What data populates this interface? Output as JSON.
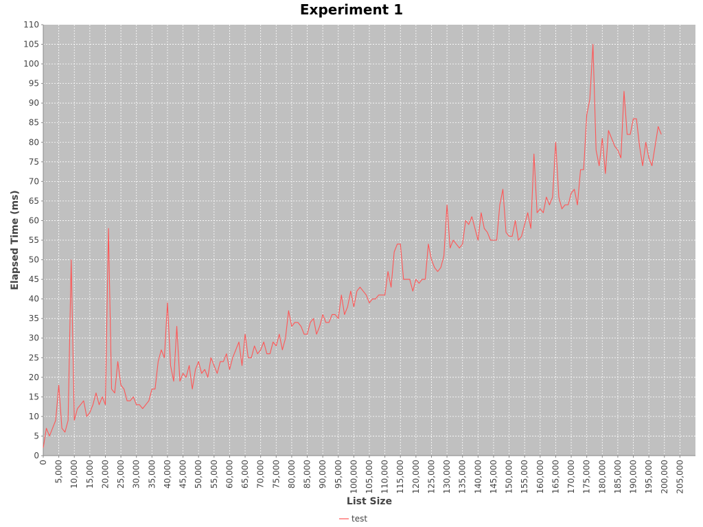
{
  "colors": {
    "plot_background": "#c0c0c0",
    "gridline": "#ffffff",
    "series": "#ff5555",
    "axis": "#888888",
    "text": "#444444",
    "title": "#000000"
  },
  "chart_data": {
    "type": "line",
    "title": "Experiment 1",
    "xlabel": "List Size",
    "ylabel": "Elapsed Time (ms)",
    "xlim": [
      0,
      210000
    ],
    "ylim": [
      0,
      110
    ],
    "x_ticks": [
      0,
      5000,
      10000,
      15000,
      20000,
      25000,
      30000,
      35000,
      40000,
      45000,
      50000,
      55000,
      60000,
      65000,
      70000,
      75000,
      80000,
      85000,
      90000,
      95000,
      100000,
      105000,
      110000,
      115000,
      120000,
      125000,
      130000,
      135000,
      140000,
      145000,
      150000,
      155000,
      160000,
      165000,
      170000,
      175000,
      180000,
      185000,
      190000,
      195000,
      200000,
      205000
    ],
    "x_tick_labels": [
      "0",
      "5,000",
      "10,000",
      "15,000",
      "20,000",
      "25,000",
      "30,000",
      "35,000",
      "40,000",
      "45,000",
      "50,000",
      "55,000",
      "60,000",
      "65,000",
      "70,000",
      "75,000",
      "80,000",
      "85,000",
      "90,000",
      "95,000",
      "100,000",
      "105,000",
      "110,000",
      "115,000",
      "120,000",
      "125,000",
      "130,000",
      "135,000",
      "140,000",
      "145,000",
      "150,000",
      "155,000",
      "160,000",
      "165,000",
      "170,000",
      "175,000",
      "180,000",
      "185,000",
      "190,000",
      "195,000",
      "200,000",
      "205,000"
    ],
    "y_ticks": [
      0,
      5,
      10,
      15,
      20,
      25,
      30,
      35,
      40,
      45,
      50,
      55,
      60,
      65,
      70,
      75,
      80,
      85,
      90,
      95,
      100,
      105,
      110
    ],
    "y_tick_labels": [
      "0",
      "5",
      "10",
      "15",
      "20",
      "25",
      "30",
      "35",
      "40",
      "45",
      "50",
      "55",
      "60",
      "65",
      "70",
      "75",
      "80",
      "85",
      "90",
      "95",
      "100",
      "105",
      "110"
    ],
    "grid": true,
    "legend": "bottom-center",
    "series": [
      {
        "name": "test",
        "x_start": 0,
        "x_step": 1000,
        "values": [
          2,
          7,
          5,
          7,
          9,
          18,
          7,
          6,
          9,
          50,
          9,
          12,
          13,
          14,
          10,
          11,
          13,
          16,
          13,
          15,
          13,
          58,
          17,
          16,
          24,
          18,
          17,
          14,
          14,
          15,
          13,
          13,
          12,
          13,
          14,
          17,
          17,
          24,
          27,
          25,
          39,
          23,
          19,
          33,
          19,
          21,
          20,
          23,
          17,
          22,
          24,
          21,
          22,
          20,
          25,
          23,
          21,
          24,
          24,
          26,
          22,
          25,
          27,
          29,
          23,
          31,
          25,
          25,
          28,
          26,
          27,
          29,
          26,
          26,
          29,
          28,
          31,
          27,
          30,
          37,
          33,
          34,
          34,
          33,
          31,
          31,
          34,
          35,
          31,
          33,
          36,
          34,
          34,
          36,
          36,
          35,
          41,
          36,
          38,
          42,
          38,
          42,
          43,
          42,
          41,
          39,
          40,
          40,
          41,
          41,
          41,
          47,
          43,
          52,
          54,
          54,
          45,
          45,
          45,
          42,
          45,
          44,
          45,
          45,
          54,
          50,
          48,
          47,
          48,
          51,
          64,
          53,
          55,
          54,
          53,
          54,
          60,
          59,
          61,
          58,
          55,
          62,
          58,
          57,
          55,
          55,
          55,
          64,
          68,
          57,
          56,
          56,
          60,
          55,
          56,
          59,
          62,
          58,
          77,
          62,
          63,
          62,
          66,
          64,
          66,
          80,
          66,
          63,
          64,
          64,
          67,
          68,
          64,
          73,
          73,
          87,
          91,
          105,
          78,
          74,
          81,
          72,
          83,
          81,
          79,
          78,
          76,
          93,
          82,
          82,
          86,
          86,
          79,
          74,
          80,
          76,
          74,
          79,
          84,
          82
        ]
      }
    ]
  }
}
